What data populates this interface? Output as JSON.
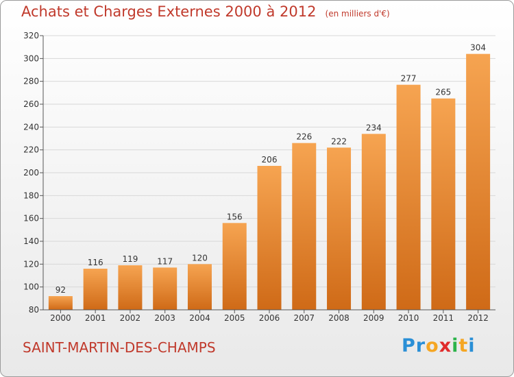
{
  "title": "Achats et Charges Externes 2000 à 2012",
  "subtitle": "(en milliers d'€)",
  "commune": "SAINT-MARTIN-DES-CHAMPS",
  "logo": {
    "letters": [
      "P",
      "r",
      "o",
      "x",
      "i",
      "t",
      "i"
    ],
    "colors": [
      "#2a8fd6",
      "#2a8fd6",
      "#f5a623",
      "#e02b2b",
      "#2bb34a",
      "#f5a623",
      "#2a8fd6"
    ]
  },
  "colors": {
    "bar_top": "#f6a451",
    "bar_bottom": "#cf6a17",
    "text_red": "#c0392b",
    "grid": "#d8d8d8"
  },
  "chart_data": {
    "type": "bar",
    "title": "Achats et Charges Externes 2000 à 2012",
    "subtitle": "(en milliers d'€)",
    "categories": [
      "2000",
      "2001",
      "2002",
      "2003",
      "2004",
      "2005",
      "2006",
      "2007",
      "2008",
      "2009",
      "2010",
      "2011",
      "2012"
    ],
    "values": [
      92,
      116,
      119,
      117,
      120,
      156,
      206,
      226,
      222,
      234,
      277,
      265,
      304
    ],
    "ylim": [
      80,
      320
    ],
    "yticks": [
      80,
      100,
      120,
      140,
      160,
      180,
      200,
      220,
      240,
      260,
      280,
      300,
      320
    ],
    "grid": true
  }
}
